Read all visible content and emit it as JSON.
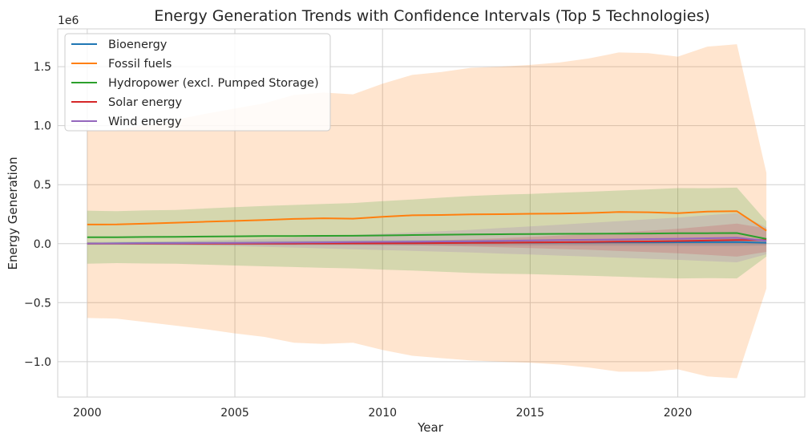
{
  "chart_data": {
    "type": "line",
    "title": "Energy Generation Trends with Confidence Intervals (Top 5 Technologies)",
    "xlabel": "Year",
    "ylabel": "Energy Generation",
    "y_offset_label": "1e6",
    "xlim": [
      1999,
      2024.3
    ],
    "ylim": [
      -1300000,
      1820000
    ],
    "grid": true,
    "legend_position": "top-left",
    "x_ticks": [
      2000,
      2005,
      2010,
      2015,
      2020
    ],
    "x_tick_labels": [
      "2000",
      "2005",
      "2010",
      "2015",
      "2020"
    ],
    "y_ticks": [
      -1000000,
      -500000,
      0,
      500000,
      1000000,
      1500000
    ],
    "y_tick_labels": [
      "−1.0",
      "−0.5",
      "0.0",
      "0.5",
      "1.0",
      "1.5"
    ],
    "x": [
      2000,
      2001,
      2002,
      2003,
      2004,
      2005,
      2006,
      2007,
      2008,
      2009,
      2010,
      2011,
      2012,
      2013,
      2014,
      2015,
      2016,
      2017,
      2018,
      2019,
      2020,
      2021,
      2022,
      2023
    ],
    "series": [
      {
        "name": "Bioenergy",
        "color": "#1f77b4",
        "values": [
          2000,
          2500,
          3000,
          3500,
          4000,
          4500,
          5000,
          5500,
          6000,
          6500,
          7000,
          7500,
          8000,
          8500,
          9000,
          9500,
          10000,
          10500,
          11000,
          11500,
          12000,
          12500,
          13000,
          8000
        ],
        "ci_lower": [
          -10000,
          -10000,
          -10500,
          -11000,
          -11500,
          -12000,
          -12500,
          -13000,
          -13500,
          -14000,
          -14500,
          -15000,
          -15500,
          -16000,
          -16500,
          -17000,
          -17500,
          -18000,
          -18500,
          -19000,
          -19500,
          -20000,
          -20500,
          -15000
        ],
        "ci_upper": [
          14000,
          15000,
          16500,
          18000,
          19500,
          21000,
          22500,
          24000,
          25500,
          27000,
          28500,
          30000,
          31500,
          33000,
          34500,
          36000,
          37500,
          39000,
          40500,
          42000,
          43500,
          45000,
          46500,
          31000
        ]
      },
      {
        "name": "Fossil fuels",
        "color": "#ff7f0e",
        "values": [
          162000,
          163000,
          170000,
          178000,
          186000,
          193000,
          200000,
          210000,
          215000,
          212000,
          228000,
          240000,
          243000,
          248000,
          250000,
          253000,
          255000,
          260000,
          268000,
          266000,
          258000,
          272000,
          275000,
          110000
        ],
        "ci_lower": [
          -630000,
          -635000,
          -665000,
          -695000,
          -725000,
          -760000,
          -790000,
          -840000,
          -850000,
          -840000,
          -900000,
          -950000,
          -970000,
          -990000,
          -1000000,
          -1010000,
          -1025000,
          -1050000,
          -1085000,
          -1085000,
          -1065000,
          -1125000,
          -1140000,
          -380000
        ],
        "ci_upper": [
          955000,
          960000,
          1010000,
          1050000,
          1100000,
          1145000,
          1190000,
          1260000,
          1280000,
          1265000,
          1355000,
          1430000,
          1455000,
          1490000,
          1500000,
          1515000,
          1535000,
          1570000,
          1620000,
          1615000,
          1585000,
          1670000,
          1690000,
          600000
        ]
      },
      {
        "name": "Hydropower (excl. Pumped Storage)",
        "color": "#2ca02c",
        "values": [
          55000,
          55000,
          57000,
          58000,
          60000,
          62000,
          64000,
          65000,
          66000,
          67000,
          70000,
          73000,
          76000,
          78000,
          80000,
          82000,
          83000,
          84000,
          85000,
          86000,
          88000,
          89000,
          90000,
          40000
        ],
        "ci_lower": [
          -170000,
          -165000,
          -168000,
          -170000,
          -178000,
          -185000,
          -192000,
          -198000,
          -205000,
          -210000,
          -220000,
          -228000,
          -238000,
          -248000,
          -255000,
          -258000,
          -265000,
          -272000,
          -280000,
          -288000,
          -295000,
          -292000,
          -295000,
          -110000
        ],
        "ci_upper": [
          280000,
          275000,
          282000,
          286000,
          298000,
          309000,
          320000,
          328000,
          337000,
          344000,
          360000,
          374000,
          390000,
          404000,
          415000,
          422000,
          431000,
          440000,
          450000,
          460000,
          471000,
          470000,
          475000,
          190000
        ]
      },
      {
        "name": "Solar energy",
        "color": "#d62728",
        "values": [
          0,
          0,
          0,
          0,
          0,
          0,
          0,
          500,
          1000,
          1500,
          2500,
          3500,
          5000,
          6500,
          8000,
          10000,
          12000,
          14000,
          17000,
          19000,
          22000,
          26000,
          30000,
          30000
        ],
        "ci_lower": [
          -1000,
          -1000,
          -1000,
          -1000,
          -1500,
          -1500,
          -2000,
          -3500,
          -5000,
          -7000,
          -10000,
          -14000,
          -19000,
          -24000,
          -30000,
          -37000,
          -45000,
          -52000,
          -62000,
          -72000,
          -82000,
          -95000,
          -110000,
          -70000
        ],
        "ci_upper": [
          1000,
          1000,
          1000,
          1000,
          1500,
          1500,
          2000,
          4500,
          7000,
          10000,
          15000,
          21000,
          29000,
          37000,
          46000,
          57000,
          69000,
          80000,
          96000,
          110000,
          126000,
          147000,
          170000,
          130000
        ]
      },
      {
        "name": "Wind energy",
        "color": "#9467bd",
        "values": [
          1000,
          2000,
          3000,
          4000,
          5000,
          6000,
          7500,
          9000,
          11000,
          13000,
          15000,
          17000,
          19000,
          21000,
          24000,
          27000,
          30000,
          33000,
          36000,
          39000,
          42000,
          46000,
          50000,
          25000
        ],
        "ci_lower": [
          -3000,
          -5000,
          -8000,
          -12000,
          -16000,
          -21000,
          -27000,
          -33000,
          -40000,
          -47000,
          -54000,
          -61000,
          -68000,
          -75000,
          -84000,
          -92000,
          -101000,
          -110000,
          -119000,
          -128000,
          -137000,
          -148000,
          -158000,
          -90000
        ],
        "ci_upper": [
          5000,
          9000,
          14000,
          20000,
          26000,
          33000,
          42000,
          51000,
          62000,
          73000,
          84000,
          95000,
          106000,
          117000,
          132000,
          146000,
          161000,
          176000,
          191000,
          206000,
          221000,
          240000,
          258000,
          140000
        ]
      }
    ]
  }
}
